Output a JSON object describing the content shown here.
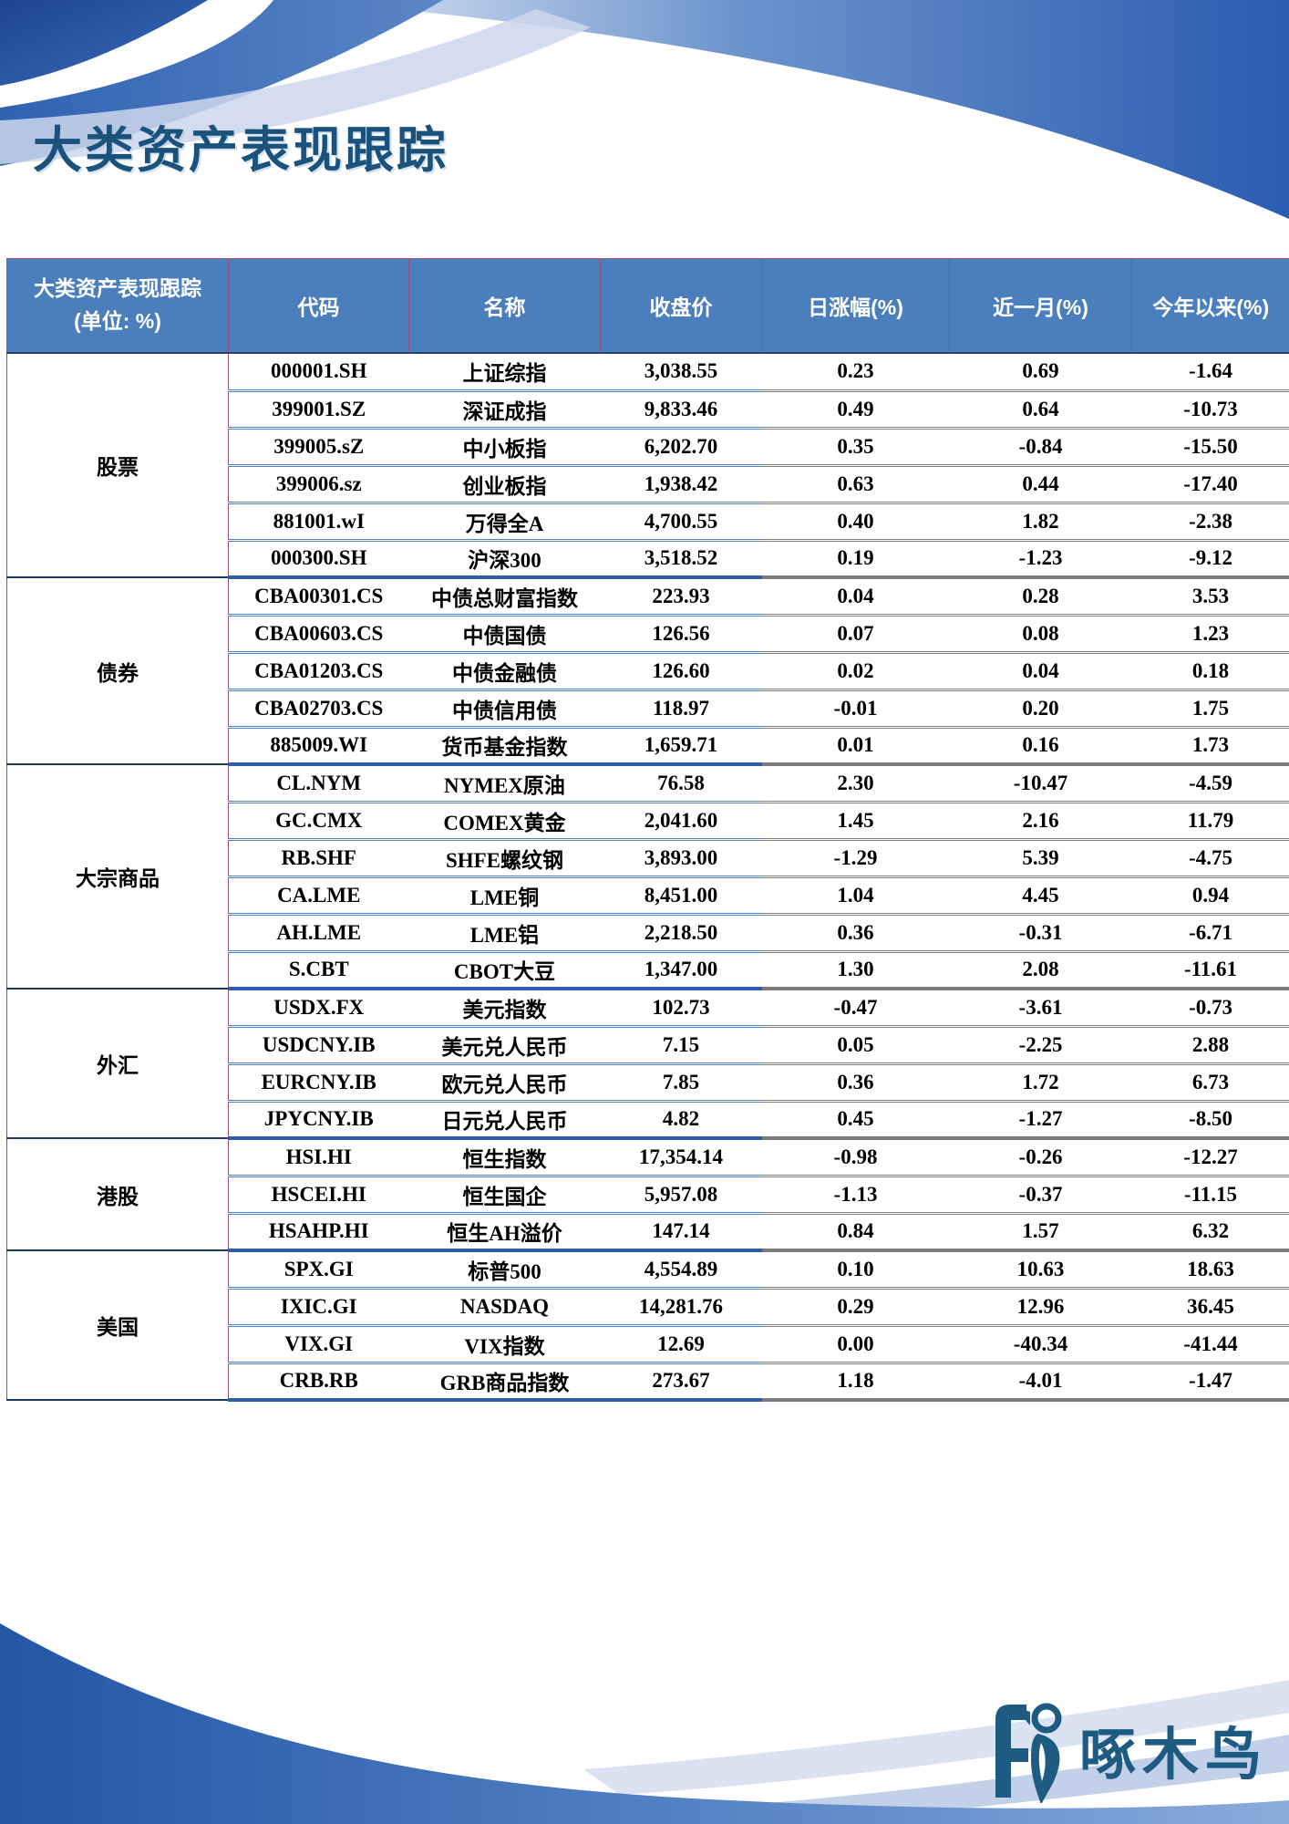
{
  "page": {
    "title": "大类资产表现跟踪"
  },
  "colors": {
    "header_bg": "#4b7ebd",
    "positive": "#fe0000",
    "negative": "#009438",
    "zero": "#000000",
    "section_line": "#1f3864",
    "row_line_left": "#4f81bd",
    "row_line_right": "#7f7f7f",
    "title": "#1a527c",
    "logo": "#1d5b82"
  },
  "table": {
    "corner_line1": "大类资产表现跟踪",
    "corner_line2": "(单位: %)",
    "columns": [
      "代码",
      "名称",
      "收盘价",
      "日涨幅(%)",
      "近一月(%)",
      "今年以来(%)"
    ],
    "sections": [
      {
        "category": "股票",
        "rows": [
          {
            "code": "000001.SH",
            "name": "上证综指",
            "close": "3,038.55",
            "day": "0.23",
            "month": "0.69",
            "ytd": "-1.64"
          },
          {
            "code": "399001.SZ",
            "name": "深证成指",
            "close": "9,833.46",
            "day": "0.49",
            "month": "0.64",
            "ytd": "-10.73"
          },
          {
            "code": "399005.sZ",
            "name": "中小板指",
            "close": "6,202.70",
            "day": "0.35",
            "month": "-0.84",
            "ytd": "-15.50"
          },
          {
            "code": "399006.sz",
            "name": "创业板指",
            "close": "1,938.42",
            "day": "0.63",
            "month": "0.44",
            "ytd": "-17.40"
          },
          {
            "code": "881001.wI",
            "name": "万得全A",
            "close": "4,700.55",
            "day": "0.40",
            "month": "1.82",
            "ytd": "-2.38"
          },
          {
            "code": "000300.SH",
            "name": "沪深300",
            "close": "3,518.52",
            "day": "0.19",
            "month": "-1.23",
            "ytd": "-9.12"
          }
        ]
      },
      {
        "category": "债券",
        "rows": [
          {
            "code": "CBA00301.CS",
            "name": "中债总财富指数",
            "close": "223.93",
            "day": "0.04",
            "month": "0.28",
            "ytd": "3.53"
          },
          {
            "code": "CBA00603.CS",
            "name": "中债国债",
            "close": "126.56",
            "day": "0.07",
            "month": "0.08",
            "ytd": "1.23"
          },
          {
            "code": "CBA01203.CS",
            "name": "中债金融债",
            "close": "126.60",
            "day": "0.02",
            "month": "0.04",
            "ytd": "0.18"
          },
          {
            "code": "CBA02703.CS",
            "name": "中债信用债",
            "close": "118.97",
            "day": "-0.01",
            "month": "0.20",
            "ytd": "1.75"
          },
          {
            "code": "885009.WI",
            "name": "货币基金指数",
            "close": "1,659.71",
            "day": "0.01",
            "month": "0.16",
            "ytd": "1.73"
          }
        ]
      },
      {
        "category": "大宗商品",
        "rows": [
          {
            "code": "CL.NYM",
            "name": "NYMEX原油",
            "close": "76.58",
            "day": "2.30",
            "month": "-10.47",
            "ytd": "-4.59"
          },
          {
            "code": "GC.CMX",
            "name": "COMEX黄金",
            "close": "2,041.60",
            "day": "1.45",
            "month": "2.16",
            "ytd": "11.79"
          },
          {
            "code": "RB.SHF",
            "name": "SHFE螺纹钢",
            "close": "3,893.00",
            "day": "-1.29",
            "month": "5.39",
            "ytd": "-4.75"
          },
          {
            "code": "CA.LME",
            "name": "LME铜",
            "close": "8,451.00",
            "day": "1.04",
            "month": "4.45",
            "ytd": "0.94"
          },
          {
            "code": "AH.LME",
            "name": "LME铝",
            "close": "2,218.50",
            "day": "0.36",
            "month": "-0.31",
            "ytd": "-6.71"
          },
          {
            "code": "S.CBT",
            "name": "CBOT大豆",
            "close": "1,347.00",
            "day": "1.30",
            "month": "2.08",
            "ytd": "-11.61"
          }
        ]
      },
      {
        "category": "外汇",
        "rows": [
          {
            "code": "USDX.FX",
            "name": "美元指数",
            "close": "102.73",
            "day": "-0.47",
            "month": "-3.61",
            "ytd": "-0.73"
          },
          {
            "code": "USDCNY.IB",
            "name": "美元兑人民币",
            "close": "7.15",
            "day": "0.05",
            "month": "-2.25",
            "ytd": "2.88"
          },
          {
            "code": "EURCNY.IB",
            "name": "欧元兑人民币",
            "close": "7.85",
            "day": "0.36",
            "month": "1.72",
            "ytd": "6.73"
          },
          {
            "code": "JPYCNY.IB",
            "name": "日元兑人民币",
            "close": "4.82",
            "day": "0.45",
            "month": "-1.27",
            "ytd": "-8.50"
          }
        ]
      },
      {
        "category": "港股",
        "rows": [
          {
            "code": "HSI.HI",
            "name": "恒生指数",
            "close": "17,354.14",
            "day": "-0.98",
            "month": "-0.26",
            "ytd": "-12.27"
          },
          {
            "code": "HSCEI.HI",
            "name": "恒生国企",
            "close": "5,957.08",
            "day": "-1.13",
            "month": "-0.37",
            "ytd": "-11.15"
          },
          {
            "code": "HSAHP.HI",
            "name": "恒生AH溢价",
            "close": "147.14",
            "day": "0.84",
            "month": "1.57",
            "ytd": "6.32"
          }
        ]
      },
      {
        "category": "美国",
        "rows": [
          {
            "code": "SPX.GI",
            "name": "标普500",
            "close": "4,554.89",
            "day": "0.10",
            "month": "10.63",
            "ytd": "18.63"
          },
          {
            "code": "IXIC.GI",
            "name": "NASDAQ",
            "close": "14,281.76",
            "day": "0.29",
            "month": "12.96",
            "ytd": "36.45"
          },
          {
            "code": "VIX.GI",
            "name": "VIX指数",
            "close": "12.69",
            "day": "0.00",
            "month": "-40.34",
            "ytd": "-41.44"
          },
          {
            "code": "CRB.RB",
            "name": "GRB商品指数",
            "close": "273.67",
            "day": "1.18",
            "month": "-4.01",
            "ytd": "-1.47"
          }
        ]
      }
    ]
  },
  "logo": {
    "text": "啄木鸟"
  }
}
